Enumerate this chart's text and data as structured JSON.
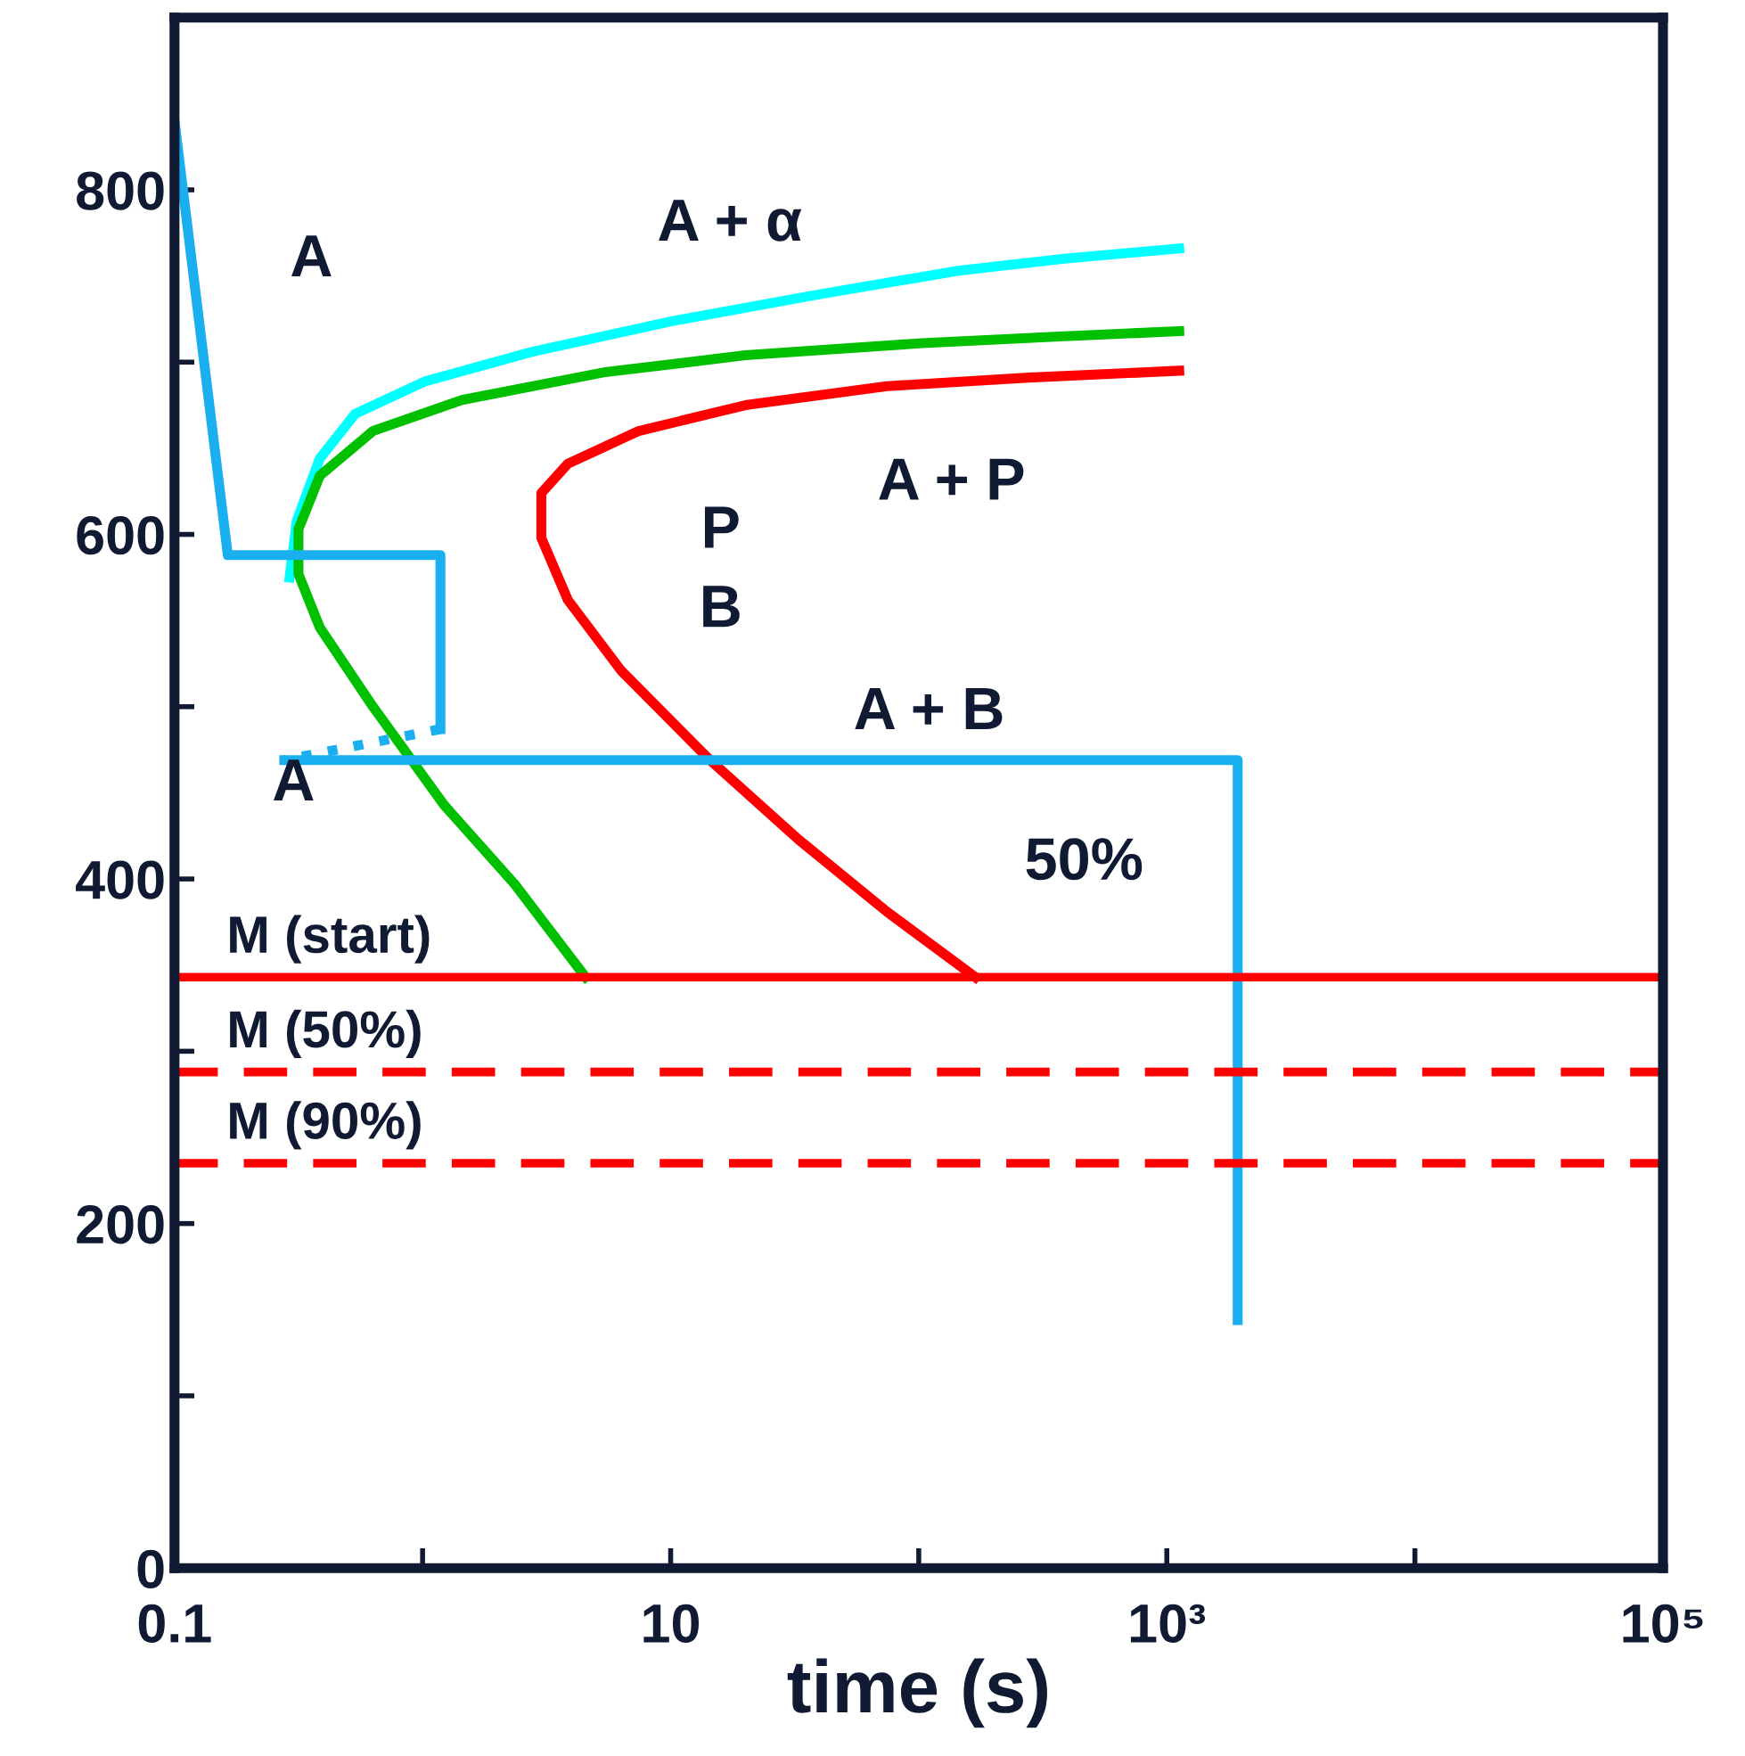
{
  "chart_data": {
    "type": "line",
    "xlabel": "time (s)",
    "log": "x",
    "grid": false,
    "xlim": [
      0.1,
      100000
    ],
    "ylim": [
      0,
      900
    ],
    "xticks": [
      {
        "value": 0.1,
        "label": "0.1"
      },
      {
        "value": 1,
        "label": null
      },
      {
        "value": 10,
        "label": "10"
      },
      {
        "value": 100,
        "label": null
      },
      {
        "value": 1000,
        "label": "10³"
      },
      {
        "value": 10000,
        "label": null
      },
      {
        "value": 100000,
        "label": "10⁵"
      }
    ],
    "yticks": [
      0,
      {
        "value": 100,
        "label": null
      },
      200,
      {
        "value": 300,
        "label": null
      },
      400,
      {
        "value": 500,
        "label": null
      },
      600,
      {
        "value": 700,
        "label": null
      },
      800
    ],
    "series": [
      {
        "color": "#00ffff",
        "line_style": "solid",
        "x": [
          0.291,
          0.311,
          0.385,
          0.535,
          1.03,
          2.77,
          10.3,
          38.5,
          144,
          385,
          1122
        ],
        "values": [
          575,
          608,
          644,
          670,
          689,
          706,
          724,
          739,
          753,
          760,
          766
        ]
      },
      {
        "color": "#00c000",
        "line_style": "solid",
        "x": [
          4.54,
          2.35,
          1.22,
          0.631,
          0.385,
          0.316,
          0.316,
          0.385,
          0.631,
          1.44,
          5.35,
          20,
          103,
          385,
          1122
        ],
        "values": [
          343,
          397,
          443,
          500,
          546,
          577,
          603,
          634,
          660,
          678,
          694,
          704,
          711,
          715,
          718
        ]
      },
      {
        "color": "#ff0000",
        "line_style": "solid",
        "x": [
          169,
          74.4,
          32.7,
          14.4,
          6.31,
          3.85,
          3.01,
          3.01,
          3.85,
          7.43,
          20,
          74.4,
          277,
          1122
        ],
        "values": [
          343,
          381,
          423,
          469,
          521,
          562,
          598,
          624,
          641,
          660,
          675,
          686,
          691,
          695
        ]
      },
      {
        "color": "#1ab0f0",
        "line_style": "solid",
        "x": [
          0.1,
          0.164,
          1.18,
          1.18
        ],
        "values": [
          840,
          588,
          588,
          487
        ]
      },
      {
        "color": "#1ab0f0",
        "line_style": "dotted",
        "x": [
          1.18,
          0.277
        ],
        "values": [
          487,
          469
        ]
      },
      {
        "color": "#1ab0f0",
        "line_style": "solid",
        "x": [
          0.277,
          1930,
          1930
        ],
        "values": [
          469,
          469,
          144
        ]
      }
    ],
    "ref_lines": [
      {
        "axis": "y",
        "value": 343,
        "label": "M (start)",
        "color": "#ff0000",
        "line_style": "solid"
      },
      {
        "axis": "y",
        "value": 288,
        "label": "M (50%)",
        "color": "#ff0000",
        "line_style": "dashed"
      },
      {
        "axis": "y",
        "value": 235,
        "label": "M (90%)",
        "color": "#ff0000",
        "line_style": "dashed"
      }
    ],
    "annotations": [
      "A",
      "A + α",
      "A + P",
      "P",
      "B",
      "A + B",
      "A",
      "50%"
    ]
  }
}
